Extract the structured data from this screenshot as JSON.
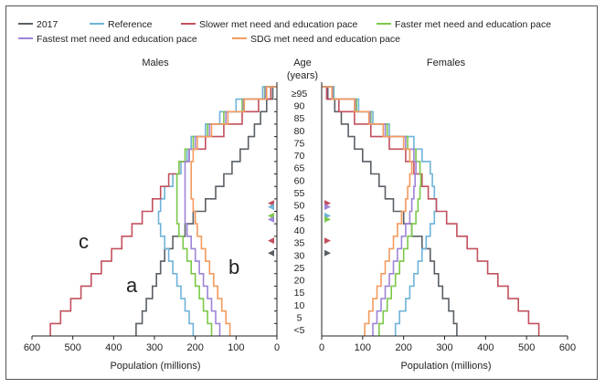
{
  "chart_data": {
    "type": "population-pyramid",
    "panels": [
      {
        "side": "left",
        "title": "Males"
      },
      {
        "side": "right",
        "title": "Females"
      }
    ],
    "center_label": "Age (years)",
    "center_label_lines": [
      "Age",
      "(years)"
    ],
    "age_groups": [
      "<5",
      "5",
      "10",
      "15",
      "20",
      "25",
      "30",
      "35",
      "40",
      "45",
      "50",
      "55",
      "60",
      "65",
      "70",
      "75",
      "80",
      "85",
      "90",
      "≥95"
    ],
    "xlabel": "Population (millions)",
    "xlim": [
      0,
      600
    ],
    "x_ticks": [
      "600",
      "500",
      "400",
      "300",
      "200",
      "100",
      "0"
    ],
    "x_ticks_right": [
      "0",
      "100",
      "200",
      "300",
      "400",
      "500",
      "600"
    ],
    "series": [
      {
        "name": "2017",
        "color": "#5a6066",
        "males": [
          345,
          330,
          320,
          305,
          295,
          285,
          275,
          255,
          225,
          205,
          175,
          150,
          130,
          110,
          90,
          70,
          55,
          40,
          25,
          10
        ],
        "females": [
          330,
          322,
          310,
          295,
          285,
          275,
          265,
          245,
          220,
          200,
          175,
          155,
          140,
          120,
          100,
          80,
          65,
          48,
          32,
          15
        ]
      },
      {
        "name": "Reference",
        "color": "#6fb3d9",
        "males": [
          205,
          215,
          225,
          235,
          245,
          255,
          265,
          275,
          285,
          290,
          285,
          275,
          255,
          235,
          220,
          210,
          175,
          140,
          100,
          35
        ],
        "females": [
          180,
          190,
          205,
          215,
          225,
          235,
          245,
          255,
          265,
          275,
          280,
          275,
          270,
          265,
          245,
          225,
          165,
          125,
          90,
          30
        ]
      },
      {
        "name": "Slower met need and education pace",
        "color": "#c2505e",
        "males": [
          555,
          530,
          505,
          480,
          455,
          430,
          405,
          380,
          355,
          330,
          305,
          285,
          265,
          240,
          215,
          175,
          130,
          85,
          45,
          15
        ],
        "females": [
          530,
          505,
          480,
          455,
          430,
          405,
          380,
          355,
          330,
          305,
          280,
          260,
          245,
          225,
          205,
          165,
          120,
          80,
          42,
          12
        ]
      },
      {
        "name": "Faster met need and education pace",
        "color": "#7cc84a",
        "males": [
          160,
          170,
          180,
          190,
          200,
          210,
          220,
          230,
          240,
          245,
          245,
          245,
          245,
          240,
          225,
          205,
          170,
          130,
          85,
          30
        ],
        "females": [
          140,
          150,
          160,
          170,
          180,
          190,
          200,
          210,
          220,
          230,
          235,
          240,
          242,
          240,
          230,
          210,
          160,
          120,
          85,
          28
        ]
      },
      {
        "name": "Fastest met need and education pace",
        "color": "#9f84d8",
        "males": [
          140,
          150,
          160,
          170,
          180,
          190,
          200,
          210,
          220,
          225,
          225,
          225,
          225,
          225,
          215,
          200,
          165,
          125,
          82,
          28
        ],
        "females": [
          125,
          135,
          145,
          155,
          165,
          175,
          185,
          195,
          205,
          215,
          220,
          225,
          228,
          230,
          225,
          205,
          155,
          118,
          82,
          27
        ]
      },
      {
        "name": "SDG met need and education pace",
        "color": "#f39b5e",
        "males": [
          115,
          125,
          135,
          145,
          155,
          165,
          175,
          185,
          195,
          200,
          205,
          210,
          210,
          210,
          205,
          195,
          160,
          120,
          80,
          25
        ],
        "females": [
          105,
          115,
          125,
          135,
          145,
          155,
          165,
          175,
          185,
          195,
          205,
          210,
          215,
          220,
          215,
          200,
          150,
          115,
          80,
          25
        ]
      }
    ],
    "markers": [
      {
        "side": "left",
        "age": "50",
        "color": "#c2505e"
      },
      {
        "side": "left",
        "age": "50",
        "color": "#6fb3d9"
      },
      {
        "side": "left",
        "age": "45",
        "color": "#7cc84a"
      },
      {
        "side": "left",
        "age": "45",
        "color": "#9f84d8"
      },
      {
        "side": "left",
        "age": "35",
        "color": "#c2505e"
      },
      {
        "side": "left",
        "age": "30",
        "color": "#5a6066"
      },
      {
        "side": "right",
        "age": "50",
        "color": "#c2505e"
      },
      {
        "side": "right",
        "age": "50",
        "color": "#9f84d8"
      },
      {
        "side": "right",
        "age": "45",
        "color": "#6fb3d9"
      },
      {
        "side": "right",
        "age": "45",
        "color": "#7cc84a"
      },
      {
        "side": "right",
        "age": "35",
        "color": "#c2505e"
      },
      {
        "side": "right",
        "age": "30",
        "color": "#5a6066"
      }
    ],
    "annotations": [
      {
        "text": "c",
        "color": "#a0323c",
        "near_series": "Slower met need and education pace"
      },
      {
        "text": "a",
        "color": "#111111",
        "near_series": "2017"
      },
      {
        "text": "b",
        "color": "#e8702a",
        "near_series": "SDG met need and education pace"
      }
    ],
    "legend": {
      "placement": "top"
    }
  }
}
